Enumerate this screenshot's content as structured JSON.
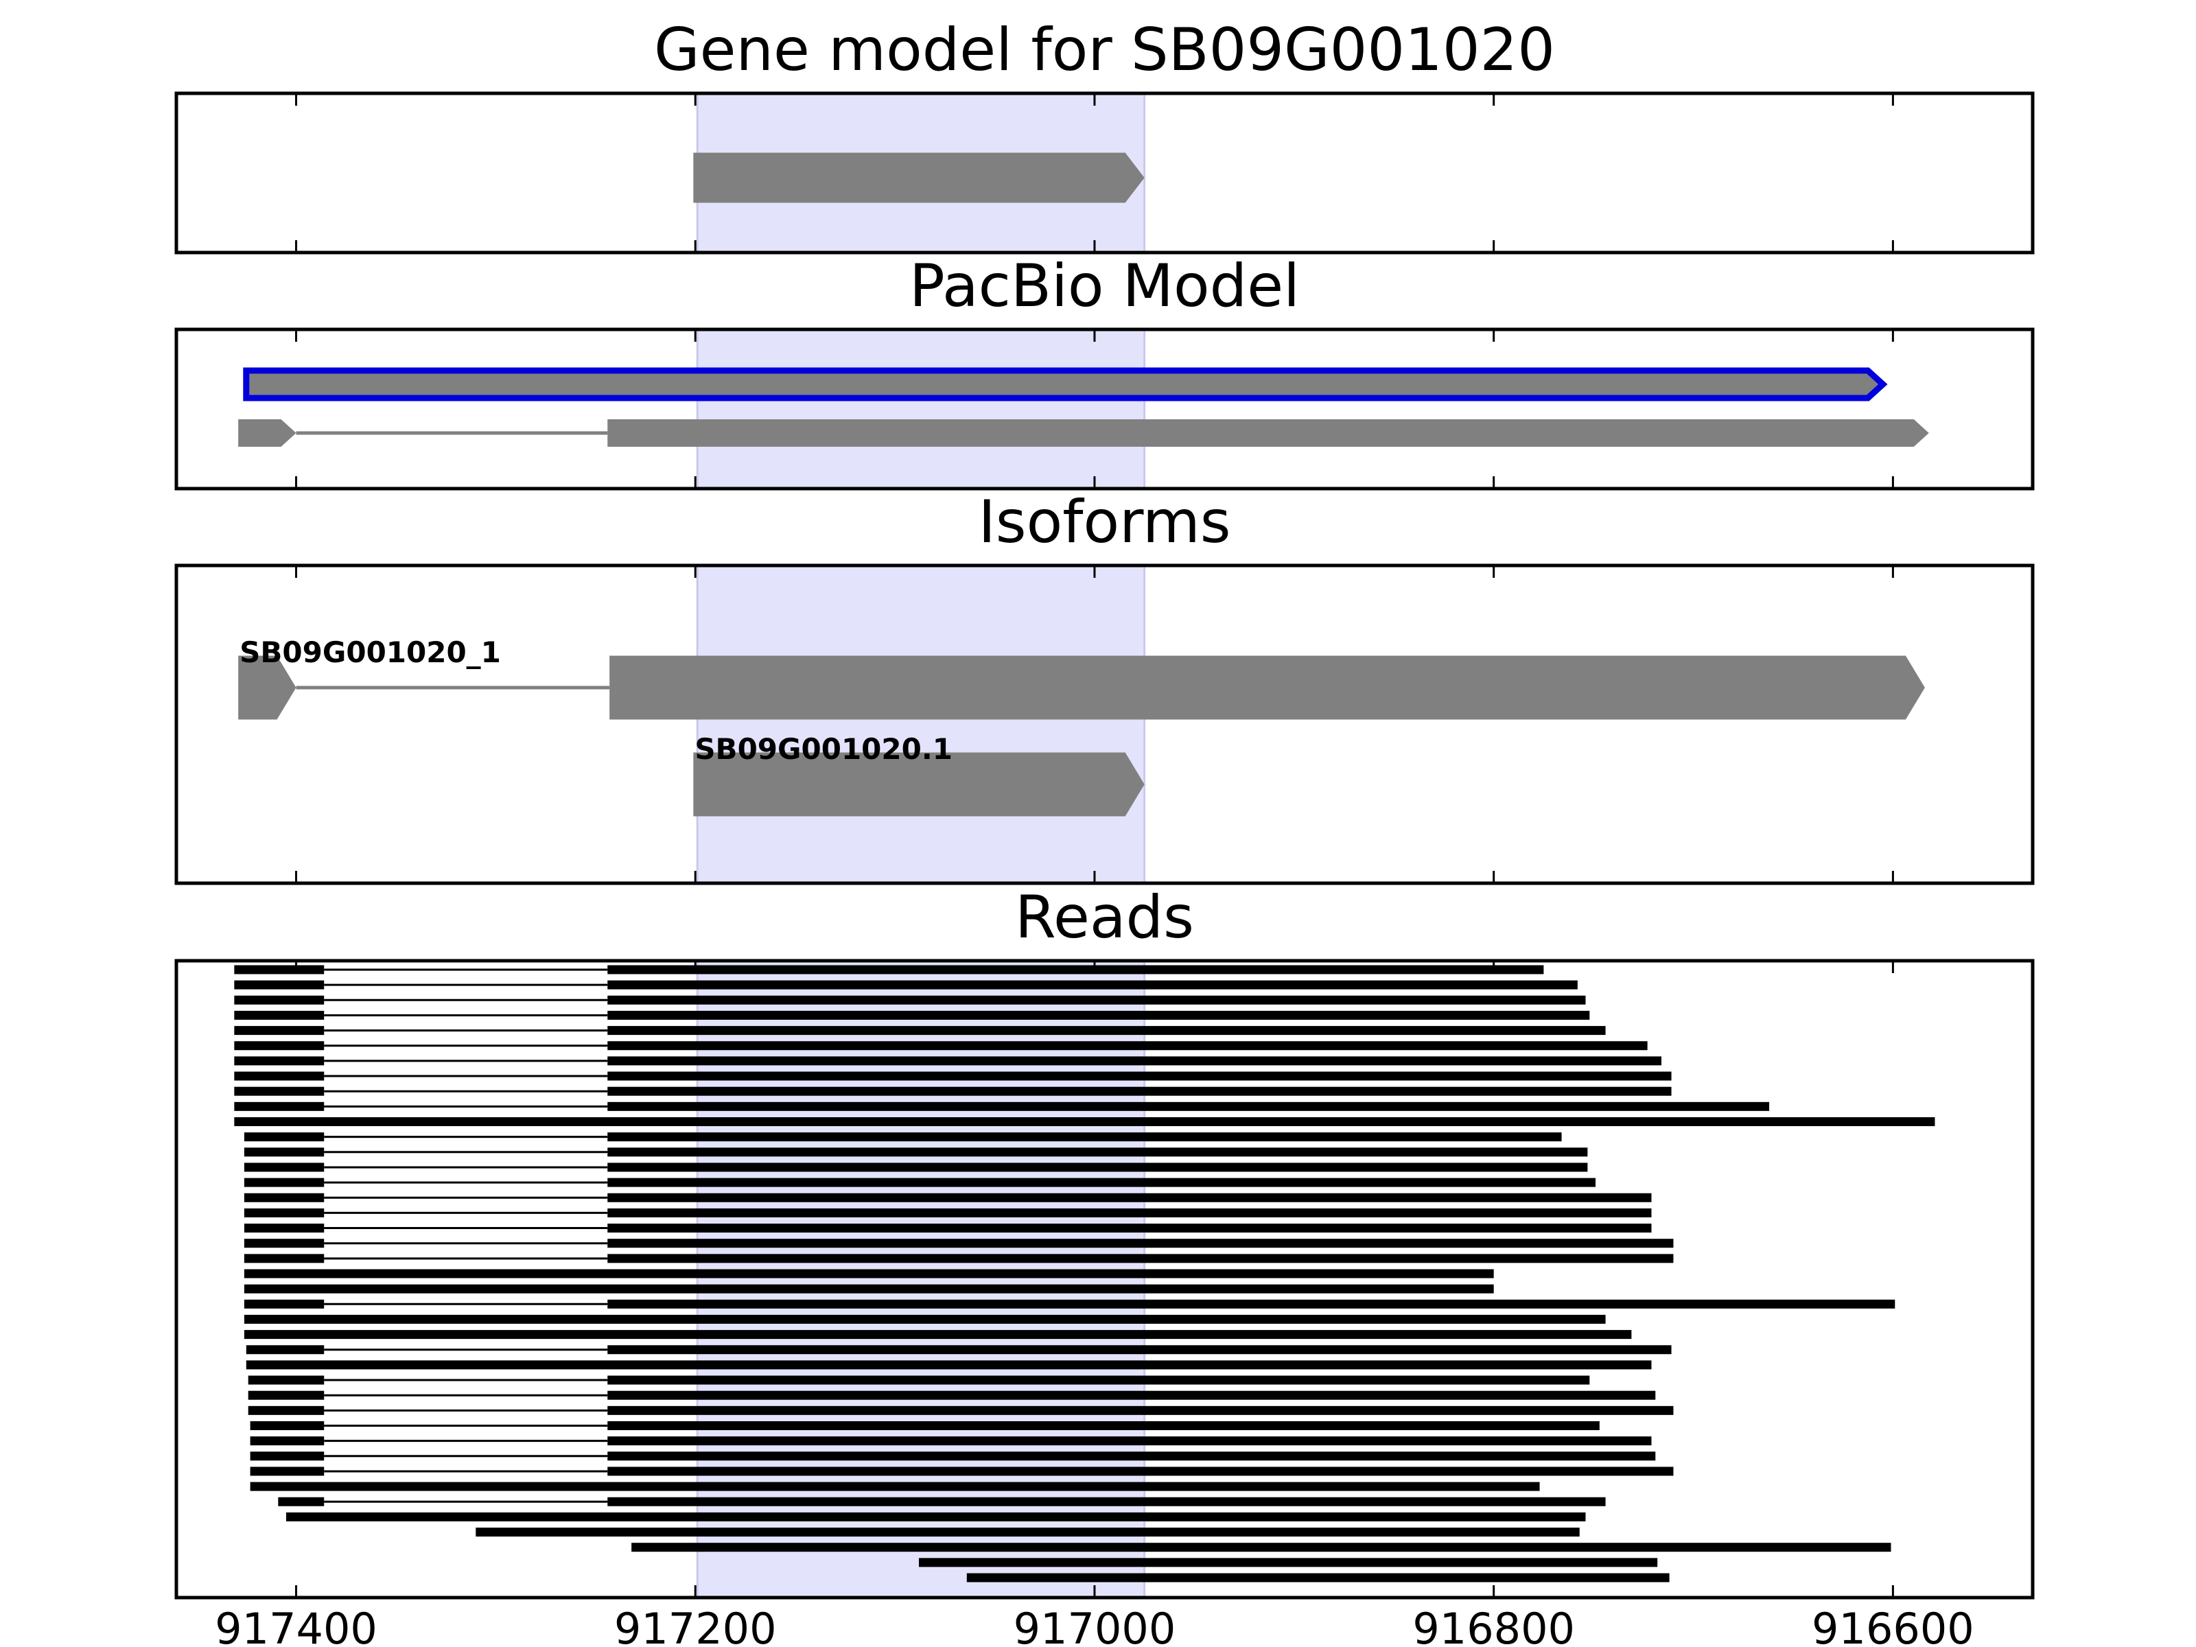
{
  "chart_data": {
    "type": "gene-track",
    "x_axis": {
      "inverted": true,
      "xlim": [
        917460,
        916530
      ],
      "ticks": [
        917400,
        917200,
        917000,
        916800,
        916600
      ],
      "tick_labels": [
        "917400",
        "917200",
        "917000",
        "916800",
        "916600"
      ]
    },
    "highlight": {
      "range": [
        917199,
        916975
      ],
      "color": "#e3e3fb"
    },
    "colors": {
      "feature": "#808080",
      "selected_outline": "#0000dd",
      "read": "#000000"
    },
    "panels": [
      {
        "title": "Gene model for SB09G001020",
        "rows": [
          {
            "exons": [
              [
                917201,
                916975
              ]
            ],
            "strand": "-"
          }
        ]
      },
      {
        "title": "PacBio Model",
        "rows": [
          {
            "exons": [
              [
                917425,
                916605
              ]
            ],
            "strand": "-",
            "selected": true
          },
          {
            "exons": [
              [
                917429,
                917400
              ],
              [
                917244,
                916582
              ]
            ],
            "strand": "-"
          }
        ]
      },
      {
        "title": "Isoforms",
        "rows": [
          {
            "label": "SB09G001020_1",
            "exons": [
              [
                917429,
                917400
              ],
              [
                917243,
                916584
              ]
            ],
            "strand": "-"
          },
          {
            "label": "SB09G001020.1",
            "exons": [
              [
                917201,
                916975
              ]
            ],
            "strand": "-"
          }
        ]
      },
      {
        "title": "Reads",
        "rows": [
          {
            "exons": [
              [
                917431,
                917386
              ],
              [
                917244,
                916775
              ]
            ]
          },
          {
            "exons": [
              [
                917431,
                917386
              ],
              [
                917244,
                916758
              ]
            ]
          },
          {
            "exons": [
              [
                917431,
                917386
              ],
              [
                917244,
                916754
              ]
            ]
          },
          {
            "exons": [
              [
                917431,
                917386
              ],
              [
                917244,
                916752
              ]
            ]
          },
          {
            "exons": [
              [
                917431,
                917386
              ],
              [
                917244,
                916744
              ]
            ]
          },
          {
            "exons": [
              [
                917431,
                917386
              ],
              [
                917244,
                916723
              ]
            ]
          },
          {
            "exons": [
              [
                917431,
                917386
              ],
              [
                917244,
                916716
              ]
            ]
          },
          {
            "exons": [
              [
                917431,
                917386
              ],
              [
                917244,
                916711
              ]
            ]
          },
          {
            "exons": [
              [
                917431,
                917386
              ],
              [
                917244,
                916711
              ]
            ]
          },
          {
            "exons": [
              [
                917431,
                917386
              ],
              [
                917244,
                916662
              ]
            ]
          },
          {
            "exons": [
              [
                917431,
                916579
              ]
            ]
          },
          {
            "exons": [
              [
                917426,
                917386
              ],
              [
                917244,
                916766
              ]
            ]
          },
          {
            "exons": [
              [
                917426,
                917386
              ],
              [
                917244,
                916753
              ]
            ]
          },
          {
            "exons": [
              [
                917426,
                917386
              ],
              [
                917244,
                916753
              ]
            ]
          },
          {
            "exons": [
              [
                917426,
                917386
              ],
              [
                917244,
                916749
              ]
            ]
          },
          {
            "exons": [
              [
                917426,
                917386
              ],
              [
                917244,
                916721
              ]
            ]
          },
          {
            "exons": [
              [
                917426,
                917386
              ],
              [
                917244,
                916721
              ]
            ]
          },
          {
            "exons": [
              [
                917426,
                917386
              ],
              [
                917244,
                916721
              ]
            ]
          },
          {
            "exons": [
              [
                917426,
                917386
              ],
              [
                917244,
                916710
              ]
            ]
          },
          {
            "exons": [
              [
                917426,
                917386
              ],
              [
                917244,
                916710
              ]
            ]
          },
          {
            "exons": [
              [
                917426,
                916800
              ]
            ]
          },
          {
            "exons": [
              [
                917426,
                916800
              ]
            ]
          },
          {
            "exons": [
              [
                917426,
                917386
              ],
              [
                917244,
                916599
              ]
            ]
          },
          {
            "exons": [
              [
                917426,
                916744
              ]
            ]
          },
          {
            "exons": [
              [
                917426,
                916731
              ]
            ]
          },
          {
            "exons": [
              [
                917425,
                917386
              ],
              [
                917244,
                916711
              ]
            ]
          },
          {
            "exons": [
              [
                917425,
                916721
              ]
            ]
          },
          {
            "exons": [
              [
                917424,
                917386
              ],
              [
                917244,
                916752
              ]
            ]
          },
          {
            "exons": [
              [
                917424,
                917386
              ],
              [
                917244,
                916719
              ]
            ]
          },
          {
            "exons": [
              [
                917424,
                917386
              ],
              [
                917244,
                916710
              ]
            ]
          },
          {
            "exons": [
              [
                917423,
                917386
              ],
              [
                917244,
                916747
              ]
            ]
          },
          {
            "exons": [
              [
                917423,
                917386
              ],
              [
                917244,
                916721
              ]
            ]
          },
          {
            "exons": [
              [
                917423,
                917386
              ],
              [
                917244,
                916719
              ]
            ]
          },
          {
            "exons": [
              [
                917423,
                917386
              ],
              [
                917244,
                916710
              ]
            ]
          },
          {
            "exons": [
              [
                917423,
                916777
              ]
            ]
          },
          {
            "exons": [
              [
                917409,
                917386
              ],
              [
                917244,
                916744
              ]
            ]
          },
          {
            "exons": [
              [
                917405,
                916754
              ]
            ]
          },
          {
            "exons": [
              [
                917310,
                916757
              ]
            ]
          },
          {
            "exons": [
              [
                917232,
                916601
              ]
            ]
          },
          {
            "exons": [
              [
                917088,
                916718
              ]
            ]
          },
          {
            "exons": [
              [
                917064,
                916712
              ]
            ]
          }
        ]
      }
    ]
  }
}
